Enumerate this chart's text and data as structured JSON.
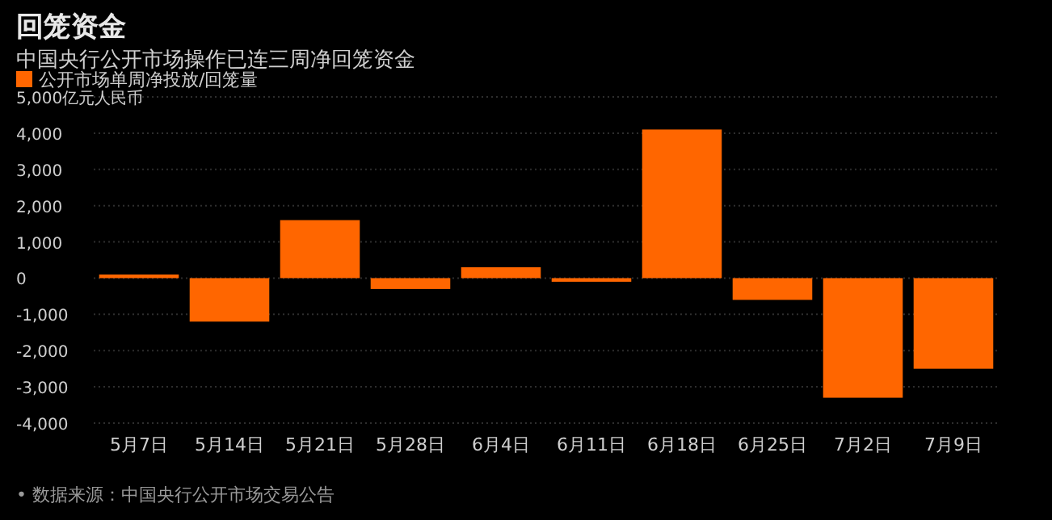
{
  "chart_data": {
    "type": "bar",
    "title": "回笼资金",
    "subtitle": "中国央行公开市场操作已连三周净回笼资金",
    "categories": [
      "5月7日",
      "5月14日",
      "5月21日",
      "5月28日",
      "6月4日",
      "6月11日",
      "6月18日",
      "6月25日",
      "7月2日",
      "7月9日"
    ],
    "series": [
      {
        "name": "公开市场单周净投放/回笼量",
        "color": "#ff6600",
        "values": [
          100,
          -1200,
          1600,
          -300,
          300,
          -100,
          4100,
          -600,
          -3300,
          -2500
        ]
      }
    ],
    "ylim": [
      -4000,
      5000
    ],
    "yticks": [
      {
        "value": -4000,
        "label": "-4,000"
      },
      {
        "value": -3000,
        "label": "-3,000"
      },
      {
        "value": -2000,
        "label": "-2,000"
      },
      {
        "value": -1000,
        "label": "-1,000"
      },
      0,
      {
        "value": 1000,
        "label": "1,000"
      },
      {
        "value": 2000,
        "label": "2,000"
      },
      {
        "value": 3000,
        "label": "3,000"
      },
      {
        "value": 4000,
        "label": "4,000"
      },
      {
        "value": 5000,
        "label": "5,000亿元人民币"
      }
    ],
    "grid": "y",
    "legend": "top left",
    "annotations": [
      "• 数据来源：中国央行公开市场交易公告"
    ]
  }
}
